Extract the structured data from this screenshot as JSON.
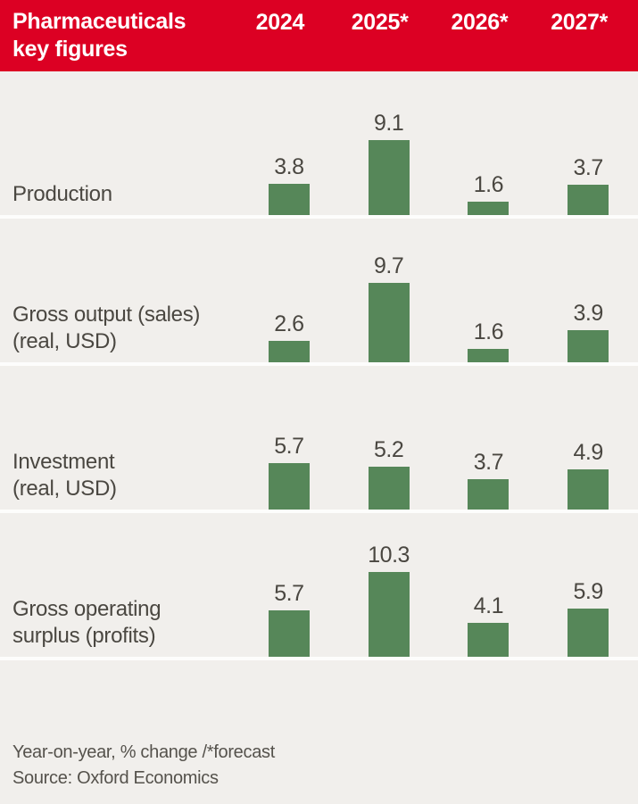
{
  "header": {
    "title_line1": "Pharmaceuticals",
    "title_line2": "key figures"
  },
  "row_labels": [
    [
      "Production"
    ],
    [
      "Gross output (sales)",
      "(real, USD)"
    ],
    [
      "Investment",
      "(real, USD)"
    ],
    [
      "Gross operating",
      "surplus (profits)"
    ]
  ],
  "chart_data": {
    "type": "bar",
    "title": "Pharmaceuticals key figures",
    "categories": [
      "2024",
      "2025*",
      "2026*",
      "2027*"
    ],
    "series": [
      {
        "name": "Production",
        "values": [
          3.8,
          9.1,
          1.6,
          3.7
        ]
      },
      {
        "name": "Gross output (sales) (real, USD)",
        "values": [
          2.6,
          9.7,
          1.6,
          3.9
        ]
      },
      {
        "name": "Investment (real, USD)",
        "values": [
          5.7,
          5.2,
          3.7,
          4.9
        ]
      },
      {
        "name": "Gross operating surplus (profits)",
        "values": [
          5.7,
          10.3,
          4.1,
          5.9
        ]
      }
    ],
    "ylabel": "Year-on-year, % change",
    "ylim": [
      0,
      11
    ],
    "grid": false,
    "value_labels": true,
    "legend_position": "none",
    "forecast_marker": "*forecast"
  },
  "colors": {
    "header_red": "#dc0023",
    "bar_green": "#568759",
    "card_bg": "#f1efec",
    "divider": "#fdfdfc",
    "text_dark": "#4a4741",
    "footer_text": "#55524c",
    "header_text": "#ffffff"
  },
  "footer": {
    "note": "Year-on-year, % change /*forecast",
    "source": "Source: Oxford Economics"
  }
}
